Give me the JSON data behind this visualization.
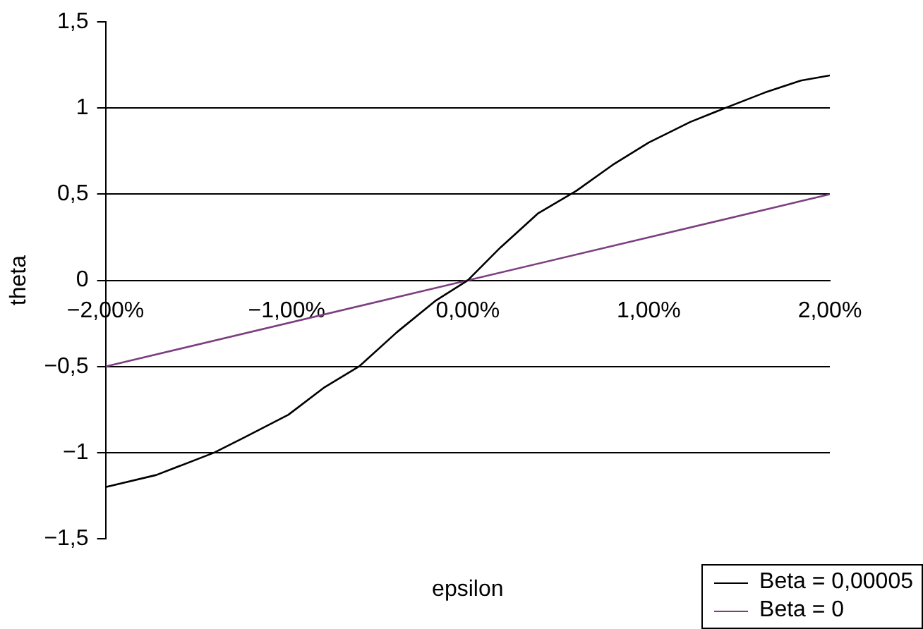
{
  "chart_data": {
    "type": "line",
    "xlabel": "epsilon",
    "ylabel": "theta",
    "xlim": [
      -0.02,
      0.02
    ],
    "xticks": [
      {
        "value": -0.02,
        "label": "−2,00%"
      },
      {
        "value": -0.01,
        "label": "−1,00%"
      },
      {
        "value": 0,
        "label": "0,00%"
      },
      {
        "value": 0.01,
        "label": "1,00%"
      },
      {
        "value": 0.02,
        "label": "2,00%"
      }
    ],
    "ylim": [
      -1.5,
      1.5
    ],
    "yticks": [
      {
        "value": -1.5,
        "label": "−1,5"
      },
      {
        "value": -1,
        "label": "−1"
      },
      {
        "value": -0.5,
        "label": "−0,5"
      },
      0,
      {
        "value": 0.5,
        "label": "0,5"
      },
      1,
      {
        "value": 1.5,
        "label": "1,5"
      }
    ],
    "grid": "y",
    "legend": "bottom right",
    "marker": "none",
    "line_style": "solid",
    "series": [
      {
        "name": "Beta = 0,00005",
        "color": "#000000",
        "x": [
          -0.02,
          -0.0172,
          -0.014,
          -0.0123,
          -0.0099,
          -0.0079,
          -0.006,
          -0.0039,
          -0.0018,
          0,
          0.0018,
          0.0039,
          0.006,
          0.008,
          0.01,
          0.0123,
          0.0142,
          0.0164,
          0.0184,
          0.02
        ],
        "values": [
          -1.2,
          -1.13,
          -1.0,
          -0.91,
          -0.78,
          -0.62,
          -0.5,
          -0.3,
          -0.12,
          0,
          0.19,
          0.39,
          0.52,
          0.67,
          0.8,
          0.92,
          1.0,
          1.09,
          1.16,
          1.19
        ]
      },
      {
        "name": "Beta = 0",
        "color": "#7b3f80",
        "x": [
          -0.02,
          0.02
        ],
        "values": [
          -0.5,
          0.5
        ]
      }
    ]
  }
}
